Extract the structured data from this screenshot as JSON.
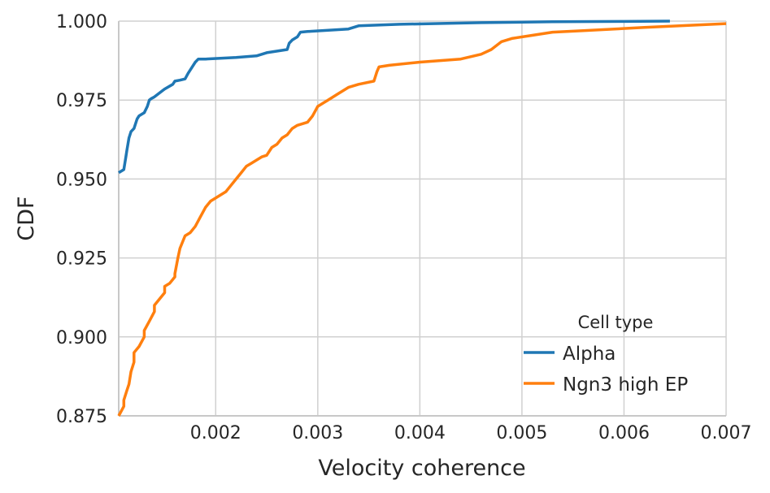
{
  "chart_data": {
    "type": "line",
    "xlabel": "Velocity coherence",
    "ylabel": "CDF",
    "xlim": [
      0.00105,
      0.007
    ],
    "ylim": [
      0.875,
      1.0
    ],
    "xticks": [
      "0.002",
      "0.003",
      "0.004",
      "0.005",
      "0.006",
      "0.007"
    ],
    "xtick_values": [
      0.002,
      0.003,
      0.004,
      0.005,
      0.006,
      0.007
    ],
    "yticks": [
      "0.875",
      "0.900",
      "0.925",
      "0.950",
      "0.975",
      "1.000"
    ],
    "ytick_values": [
      0.875,
      0.9,
      0.925,
      0.95,
      0.975,
      1.0
    ],
    "grid": true,
    "legend": {
      "title": "Cell type",
      "placement": "lower-right"
    },
    "series": [
      {
        "name": "Alpha",
        "color": "#1f77b4",
        "x": [
          0.00105,
          0.0011,
          0.00112,
          0.00113,
          0.00115,
          0.00117,
          0.0012,
          0.00123,
          0.00125,
          0.0013,
          0.00133,
          0.00135,
          0.00137,
          0.0014,
          0.00148,
          0.0015,
          0.00158,
          0.0016,
          0.00165,
          0.0017,
          0.00173,
          0.00175,
          0.0018,
          0.00183,
          0.0019,
          0.0022,
          0.0024,
          0.0025,
          0.0027,
          0.00272,
          0.00275,
          0.0028,
          0.00283,
          0.0029,
          0.0033,
          0.0034,
          0.0038,
          0.0046,
          0.0053,
          0.006,
          0.00645
        ],
        "y": [
          0.952,
          0.953,
          0.957,
          0.959,
          0.963,
          0.965,
          0.966,
          0.969,
          0.97,
          0.971,
          0.973,
          0.975,
          0.9755,
          0.976,
          0.978,
          0.9785,
          0.98,
          0.981,
          0.9813,
          0.9817,
          0.9835,
          0.9845,
          0.987,
          0.988,
          0.988,
          0.9885,
          0.989,
          0.99,
          0.991,
          0.993,
          0.994,
          0.995,
          0.9965,
          0.9967,
          0.9975,
          0.9985,
          0.999,
          0.9995,
          0.9998,
          0.9999,
          1.0
        ]
      },
      {
        "name": "Ngn3 high EP",
        "color": "#ff7f0e",
        "x": [
          0.00105,
          0.0011,
          0.0011,
          0.00113,
          0.00115,
          0.00117,
          0.0012,
          0.0012,
          0.00125,
          0.0013,
          0.0013,
          0.00135,
          0.0014,
          0.0014,
          0.00145,
          0.0015,
          0.0015,
          0.00155,
          0.0016,
          0.0016,
          0.00163,
          0.00165,
          0.0017,
          0.00175,
          0.0018,
          0.00185,
          0.0019,
          0.00195,
          0.002,
          0.0021,
          0.00215,
          0.0022,
          0.00225,
          0.0023,
          0.00235,
          0.0024,
          0.00245,
          0.0025,
          0.00255,
          0.0026,
          0.00265,
          0.0027,
          0.00275,
          0.0028,
          0.0029,
          0.00295,
          0.003,
          0.0031,
          0.0032,
          0.0033,
          0.0034,
          0.00355,
          0.00358,
          0.0036,
          0.0037,
          0.004,
          0.0044,
          0.0046,
          0.0047,
          0.0048,
          0.0049,
          0.0051,
          0.0053,
          0.0056,
          0.0062,
          0.007
        ],
        "y": [
          0.875,
          0.878,
          0.88,
          0.883,
          0.885,
          0.889,
          0.892,
          0.895,
          0.897,
          0.9,
          0.902,
          0.905,
          0.908,
          0.91,
          0.912,
          0.914,
          0.916,
          0.917,
          0.919,
          0.92,
          0.925,
          0.928,
          0.932,
          0.933,
          0.935,
          0.938,
          0.941,
          0.943,
          0.944,
          0.946,
          0.948,
          0.95,
          0.952,
          0.954,
          0.955,
          0.956,
          0.957,
          0.9575,
          0.96,
          0.961,
          0.963,
          0.964,
          0.966,
          0.967,
          0.968,
          0.97,
          0.973,
          0.975,
          0.977,
          0.979,
          0.98,
          0.981,
          0.984,
          0.9855,
          0.986,
          0.987,
          0.988,
          0.9895,
          0.991,
          0.9935,
          0.9945,
          0.9955,
          0.9965,
          0.997,
          0.998,
          0.9992
        ]
      }
    ]
  }
}
